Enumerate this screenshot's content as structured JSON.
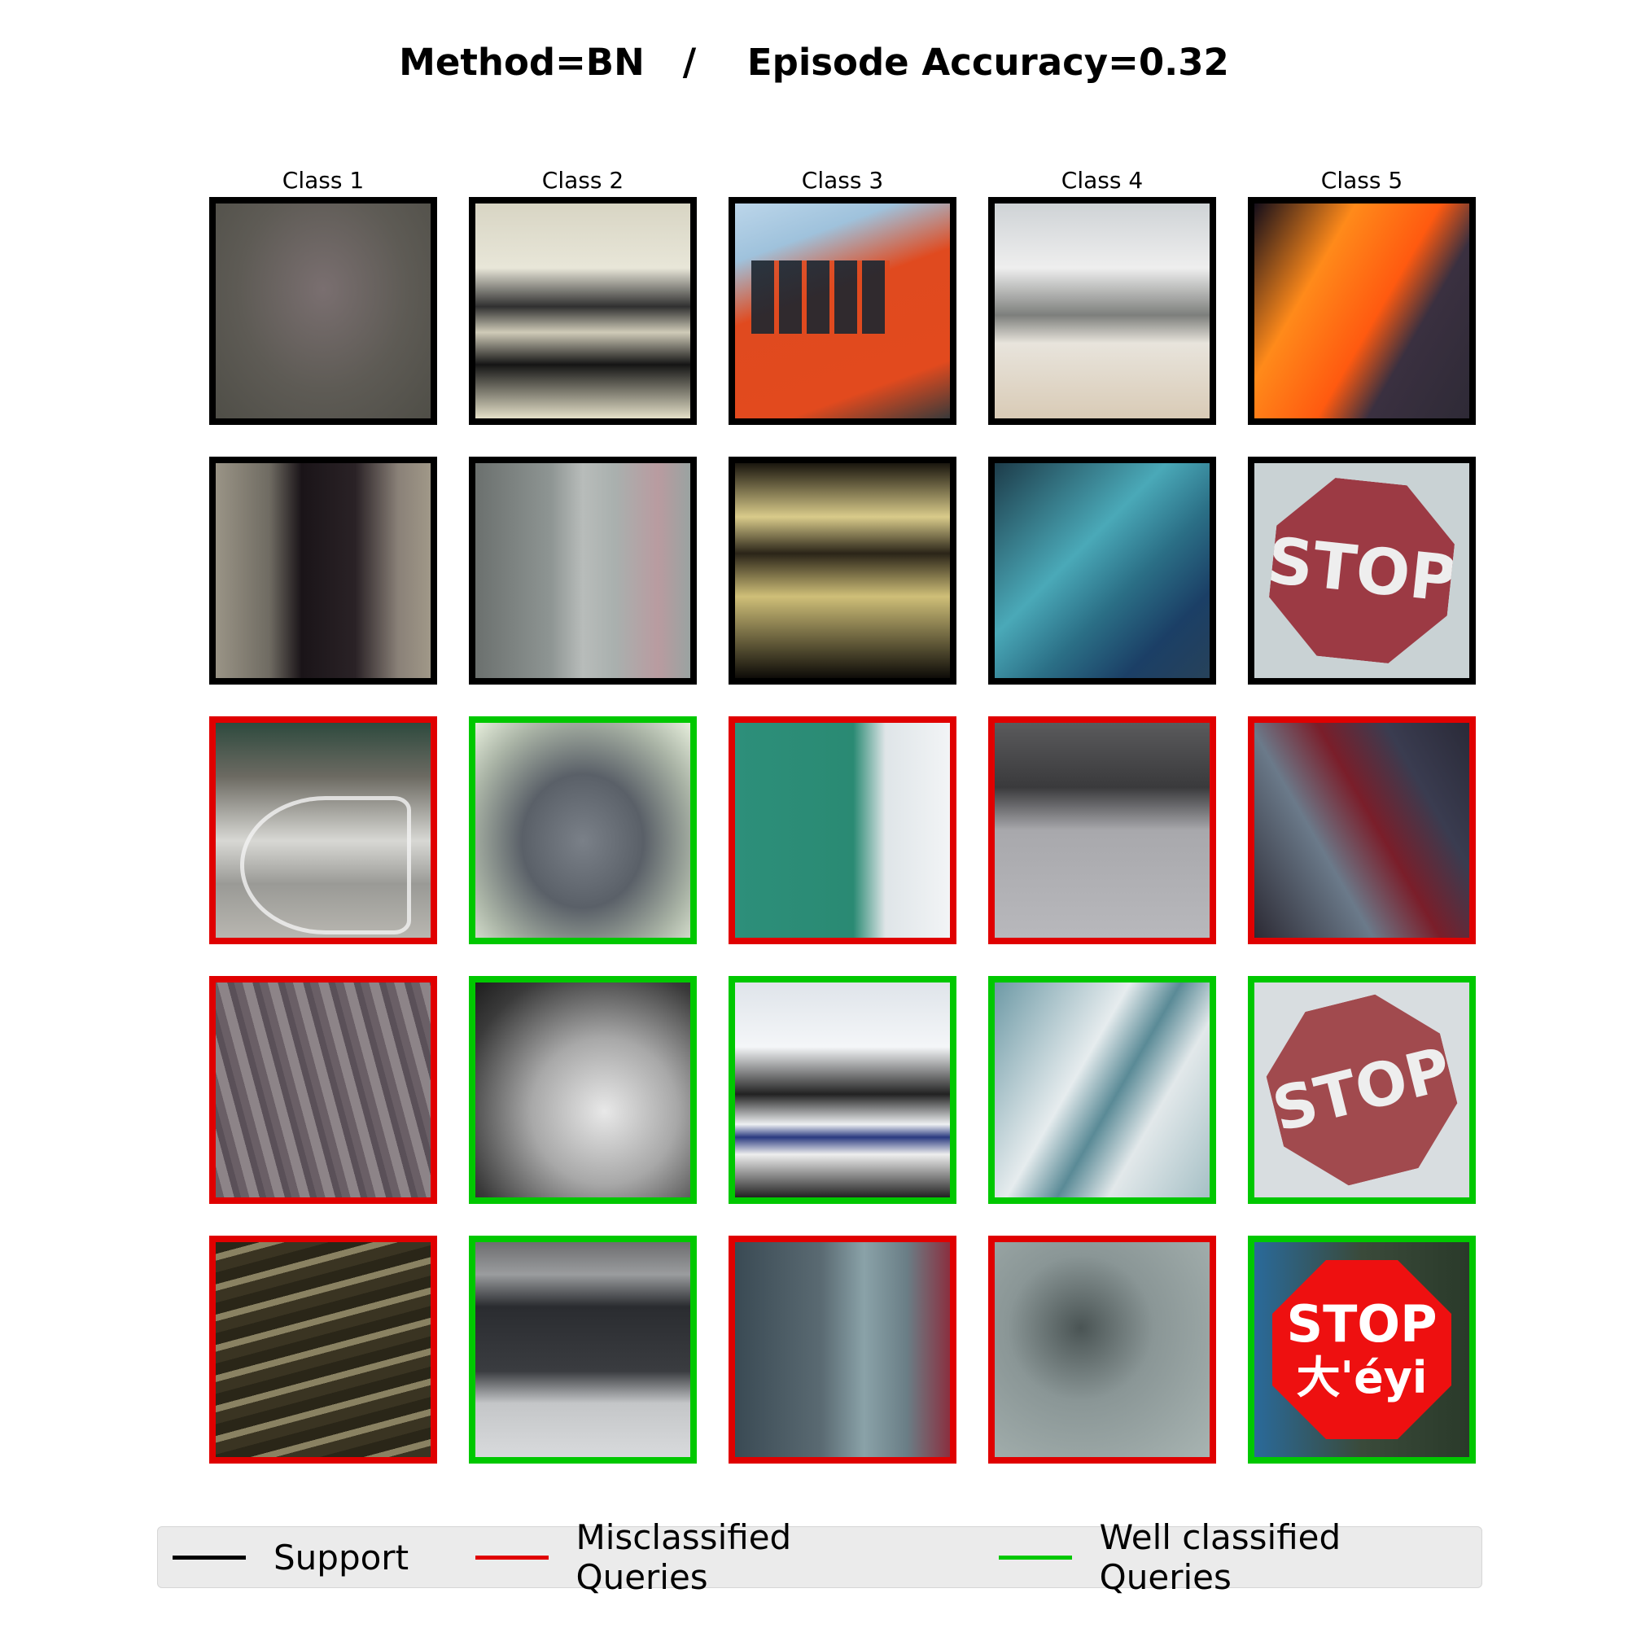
{
  "title": "Method=BN   /    Episode Accuracy=0.32",
  "columns": [
    "Class 1",
    "Class 2",
    "Class 3",
    "Class 4",
    "Class 5"
  ],
  "legend": {
    "support": {
      "label": "Support",
      "color": "#000000"
    },
    "misclassified": {
      "label": "Misclassified Queries",
      "color": "#e00000"
    },
    "well": {
      "label": "Well classified Queries",
      "color": "#00c800"
    }
  },
  "images": {
    "r2c5_text": "STOP",
    "r4c5_text": "STOP",
    "r5c5_text1": "STOP",
    "r5c5_text2": "大'éyi"
  },
  "rows": [
    [
      "support",
      "support",
      "support",
      "support",
      "support"
    ],
    [
      "support",
      "support",
      "support",
      "support",
      "support"
    ],
    [
      "misclassified",
      "well",
      "misclassified",
      "misclassified",
      "misclassified"
    ],
    [
      "misclassified",
      "well",
      "well",
      "well",
      "well"
    ],
    [
      "misclassified",
      "well",
      "misclassified",
      "misclassified",
      "well"
    ]
  ]
}
